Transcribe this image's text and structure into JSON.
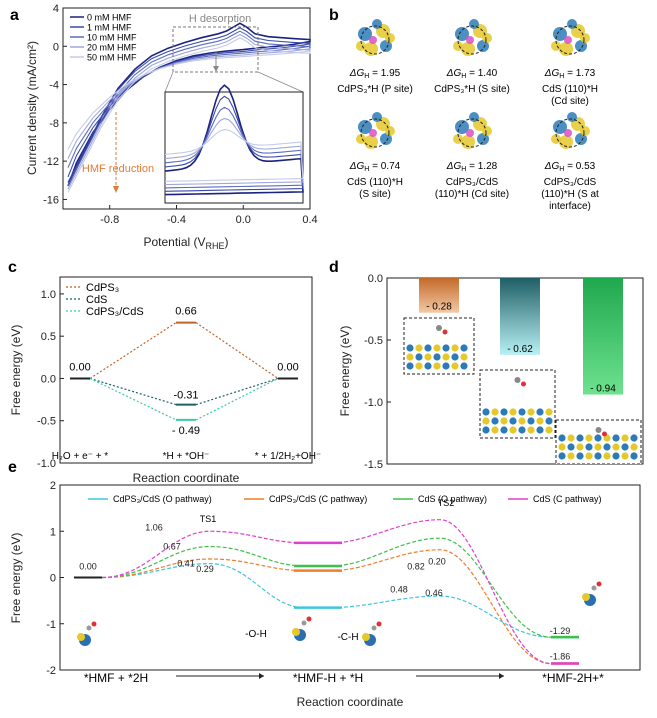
{
  "chart_data": [
    {
      "panel": "a",
      "type": "line",
      "xlabel": "Potential (V",
      "xlabel_sub": "RHE",
      "xlabel_end": ")",
      "ylabel": "Current density (mA/cm²)",
      "xlim": [
        -1.08,
        0.4
      ],
      "ylim": [
        -17,
        4
      ],
      "xticks": [
        "-0.8",
        "-0.4",
        "0.0",
        "0.4"
      ],
      "yticks": [
        "4",
        "0",
        "-4",
        "-8",
        "-12",
        "-16"
      ],
      "annotations": {
        "h_desorption": "H desorption",
        "hmf_reduction": "HMF reduction"
      },
      "series": [
        {
          "name": "0 mM HMF",
          "color": "#1a237e"
        },
        {
          "name": "1 mM HMF",
          "color": "#3949ab"
        },
        {
          "name": "10 mM HMF",
          "color": "#5c6bc0"
        },
        {
          "name": "20 mM HMF",
          "color": "#9fa8da"
        },
        {
          "name": "50 mM HMF",
          "color": "#c5cae9"
        }
      ],
      "curves": {
        "upper": [
          [
            -1.05,
            -14.6
          ],
          [
            -0.95,
            -11
          ],
          [
            -0.85,
            -7.4
          ],
          [
            -0.75,
            -4.4
          ],
          [
            -0.65,
            -2.4
          ],
          [
            -0.55,
            -1.0
          ],
          [
            -0.45,
            -0.2
          ],
          [
            -0.35,
            0.4
          ],
          [
            -0.25,
            0.9
          ],
          [
            -0.15,
            1.3
          ],
          [
            -0.1,
            1.6
          ],
          [
            -0.05,
            2.1
          ],
          [
            -0.02,
            2.4
          ],
          [
            0.02,
            2.0
          ],
          [
            0.07,
            1.3
          ],
          [
            0.15,
            1.0
          ],
          [
            0.3,
            0.8
          ],
          [
            0.4,
            0.7
          ]
        ],
        "lower": [
          [
            0.4,
            0.5
          ],
          [
            0.3,
            0.2
          ],
          [
            0.2,
            0.0
          ],
          [
            0.1,
            -0.15
          ],
          [
            0.0,
            -0.35
          ],
          [
            -0.1,
            -0.5
          ],
          [
            -0.2,
            -0.7
          ],
          [
            -0.3,
            -1.0
          ],
          [
            -0.4,
            -1.5
          ],
          [
            -0.5,
            -2.2
          ],
          [
            -0.6,
            -3.2
          ],
          [
            -0.7,
            -4.6
          ],
          [
            -0.8,
            -6.6
          ],
          [
            -0.9,
            -9.0
          ],
          [
            -1.0,
            -12.2
          ],
          [
            -1.05,
            -14.6
          ]
        ]
      }
    },
    {
      "panel": "b",
      "type": "table",
      "sites": [
        {
          "dg_prefix": "ΔG",
          "dg_sub": "H",
          "dg_value": " = 1.95",
          "name": "CdPS₃*H (P site)"
        },
        {
          "dg_prefix": "ΔG",
          "dg_sub": "H",
          "dg_value": " = 1.40",
          "name": "CdPS₃*H (S site)"
        },
        {
          "dg_prefix": "ΔG",
          "dg_sub": "H",
          "dg_value": " = 1.73",
          "name1": "CdS (110)*H",
          "name2": "(Cd site)"
        },
        {
          "dg_prefix": "ΔG",
          "dg_sub": "H",
          "dg_value": " = 0.74",
          "name1": "CdS (110)*H",
          "name2": "(S site)"
        },
        {
          "dg_prefix": "ΔG",
          "dg_sub": "H",
          "dg_value": " = 1.28",
          "name1": "CdPS₃/CdS",
          "name2": "(110)*H (Cd site)"
        },
        {
          "dg_prefix": "ΔG",
          "dg_sub": "H",
          "dg_value": " = 0.53",
          "name1": "CdPS₃/CdS",
          "name2": "(110)*H (S at",
          "name3": "interface)"
        }
      ]
    },
    {
      "panel": "c",
      "type": "line",
      "xlabel": "Reaction coordinate",
      "ylabel": "Free energy (eV)",
      "ylim": [
        -1.0,
        1.2
      ],
      "yticks": [
        "1.0",
        "0.5",
        "0.0",
        "-0.5",
        "-1.0"
      ],
      "categories": [
        "H₂O + e⁻ + *",
        "*H + *OH⁻",
        "* + 1/2H₂+OH⁻"
      ],
      "series": [
        {
          "name": "CdPS₃",
          "color": "#c0622a",
          "values": [
            0.0,
            0.66,
            0.0
          ]
        },
        {
          "name": "CdS",
          "color": "#1f5f66",
          "values": [
            0.0,
            -0.31,
            0.0
          ]
        },
        {
          "name": "CdPS₃/CdS",
          "color": "#3cc9a8",
          "values": [
            0.0,
            -0.49,
            0.0
          ]
        }
      ],
      "labels": {
        "start": "0.00",
        "end": "0.00",
        "cdps3": "0.66",
        "cds": "-0.31",
        "het": "- 0.49"
      }
    },
    {
      "panel": "d",
      "type": "bar",
      "ylabel": "Free energy (eV)",
      "ylim": [
        -1.5,
        0.0
      ],
      "yticks": [
        "0.0",
        "-0.5",
        "-1.0",
        "-1.5"
      ],
      "values": [
        -0.28,
        -0.62,
        -0.94
      ],
      "value_labels": [
        "- 0.28",
        "- 0.62",
        "- 0.94"
      ]
    },
    {
      "panel": "e",
      "type": "line",
      "xlabel": "Reaction coordinate",
      "ylabel": "Free energy (eV)",
      "ylim": [
        -2,
        2
      ],
      "yticks": [
        "2",
        "1",
        "0",
        "-1",
        "-2"
      ],
      "states": [
        "*HMF  +  *2H",
        "*HMF-H  +  *H",
        "*HMF-2H+*"
      ],
      "ts_labels": [
        "TS1",
        "TS2"
      ],
      "series": [
        {
          "name": "CdPS₃/CdS (O pathway)",
          "color": "#3ec6e0",
          "levels": [
            0.0,
            0.3,
            -0.65,
            -0.4,
            -1.29
          ]
        },
        {
          "name": "CdPS₃/CdS (C pathway)",
          "color": "#ef7e2b",
          "levels": [
            0.0,
            0.4,
            0.15,
            0.6,
            -1.86
          ]
        },
        {
          "name": "CdS (O pathway)",
          "color": "#3ec04a",
          "levels": [
            0.0,
            0.67,
            0.25,
            0.85,
            -1.29
          ]
        },
        {
          "name": "CdS (C pathway)",
          "color": "#e040d0",
          "levels": [
            0.0,
            1.0,
            0.75,
            1.25,
            -1.86
          ]
        }
      ],
      "value_labels": {
        "start": "0.00",
        "a": "1.06",
        "b": "0.67",
        "c": "0.41",
        "d": "0.29",
        "e": "0.48",
        "f": "0.82",
        "g": "0.46",
        "h": "0.20",
        "i": "-1.29",
        "j": "-1.86"
      },
      "group_labels": {
        "oh": "-O-H",
        "ch": "-C-H"
      }
    }
  ],
  "panel_labels": [
    "a",
    "b",
    "c",
    "d",
    "e"
  ]
}
